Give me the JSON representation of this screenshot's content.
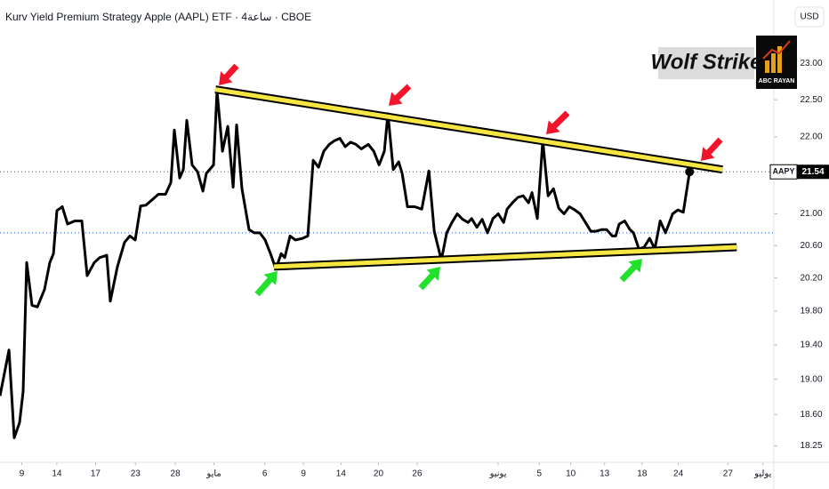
{
  "header": {
    "title": "Kurv Yield Premium Strategy Apple (AAPL) ETF · 4ساعة · CBOE",
    "currency": "USD"
  },
  "logo": {
    "title": "Wolf Strike",
    "brand": "ABC RAYAN"
  },
  "chart_data": {
    "type": "line",
    "color": "#000000",
    "log_scale": true,
    "symbol": "AAPY",
    "x": [
      0,
      0.74,
      1.18,
      1.62,
      1.91,
      2.21,
      2.65,
      3.09,
      3.68,
      4.12,
      4.42,
      4.71,
      5.15,
      5.59,
      6.18,
      6.77,
      7.21,
      7.8,
      8.24,
      8.83,
      9.12,
      9.71,
      10.3,
      10.74,
      11.18,
      11.63,
      12.07,
      12.51,
      13.1,
      13.69,
      14.13,
      14.42,
      14.86,
      15.16,
      15.45,
      15.89,
      16.34,
      16.78,
      17.07,
      17.66,
      17.95,
      18.4,
      18.84,
      19.28,
      19.57,
      20.01,
      20.6,
      21.04,
      21.49,
      21.93,
      22.37,
      22.81,
      23.25,
      23.55,
      23.99,
      24.43,
      25.02,
      25.46,
      25.9,
      26.34,
      26.78,
      27.23,
      27.67,
      28.11,
      28.55,
      28.99,
      29.43,
      29.88,
      30.46,
      30.91,
      31.35,
      31.79,
      32.08,
      32.52,
      32.97,
      33.26,
      33.7,
      34.29,
      34.88,
      35.47,
      35.91,
      36.5,
      36.94,
      37.38,
      37.82,
      38.26,
      38.71,
      39.0,
      39.44,
      39.88,
      40.32,
      40.77,
      41.21,
      41.65,
      41.94,
      42.38,
      42.83,
      43.27,
      43.71,
      44.0,
      44.44,
      44.89,
      45.33,
      45.77,
      46.21,
      46.65,
      47.09,
      47.54,
      47.98,
      48.42,
      48.86,
      49.3,
      49.74,
      50.18,
      50.63,
      50.92,
      51.21,
      51.66,
      52.1,
      52.39,
      52.83,
      53.27,
      53.72,
      54.16,
      54.6,
      55.04,
      55.63,
      56.07,
      56.51,
      57.03
    ],
    "values": [
      18.81,
      19.34,
      18.34,
      18.51,
      18.86,
      20.39,
      19.87,
      19.85,
      20.06,
      20.39,
      20.5,
      21.04,
      21.09,
      20.87,
      20.91,
      20.91,
      20.23,
      20.39,
      20.45,
      20.48,
      19.92,
      20.34,
      20.64,
      20.72,
      20.67,
      21.1,
      21.11,
      21.17,
      21.25,
      21.25,
      21.4,
      22.09,
      21.46,
      21.57,
      22.22,
      21.63,
      21.54,
      21.29,
      21.52,
      21.63,
      22.62,
      21.81,
      22.14,
      21.34,
      22.16,
      21.32,
      20.8,
      20.76,
      20.76,
      20.67,
      20.5,
      20.31,
      20.5,
      20.45,
      20.72,
      20.67,
      20.69,
      20.72,
      21.69,
      21.6,
      21.81,
      21.9,
      21.95,
      21.98,
      21.87,
      21.93,
      21.9,
      21.84,
      21.9,
      21.81,
      21.63,
      21.81,
      22.31,
      21.57,
      21.67,
      21.52,
      21.09,
      21.09,
      21.06,
      21.55,
      20.78,
      20.42,
      20.76,
      20.89,
      21.0,
      20.93,
      20.89,
      20.94,
      20.83,
      20.93,
      20.76,
      20.94,
      21.0,
      20.89,
      21.06,
      21.14,
      21.21,
      21.23,
      21.14,
      21.27,
      20.94,
      21.95,
      21.23,
      21.32,
      21.07,
      21.0,
      21.09,
      21.05,
      21.0,
      20.89,
      20.78,
      20.78,
      20.8,
      20.8,
      20.72,
      20.72,
      20.87,
      20.91,
      20.8,
      20.76,
      20.56,
      20.58,
      20.69,
      20.56,
      20.91,
      20.76,
      21.0,
      21.05,
      21.02,
      21.54
    ],
    "xlim": [
      0,
      64
    ],
    "xticks": [
      {
        "value": 1.8,
        "label": "9"
      },
      {
        "value": 4.7,
        "label": "14"
      },
      {
        "value": 7.9,
        "label": "17"
      },
      {
        "value": 11.2,
        "label": "23"
      },
      {
        "value": 14.5,
        "label": "28"
      },
      {
        "value": 17.7,
        "label": "مايو"
      },
      {
        "value": 21.9,
        "label": "6"
      },
      {
        "value": 25.1,
        "label": "9"
      },
      {
        "value": 28.2,
        "label": "14"
      },
      {
        "value": 31.3,
        "label": "20"
      },
      {
        "value": 34.5,
        "label": "26"
      },
      {
        "value": 41.2,
        "label": "يونيو"
      },
      {
        "value": 44.6,
        "label": "5"
      },
      {
        "value": 47.2,
        "label": "10"
      },
      {
        "value": 50.0,
        "label": "13"
      },
      {
        "value": 53.1,
        "label": "18"
      },
      {
        "value": 56.1,
        "label": "24"
      },
      {
        "value": 60.2,
        "label": "27"
      },
      {
        "value": 63.1,
        "label": "يوليو"
      }
    ],
    "ylim": [
      18.07,
      23.77
    ],
    "yticks": [
      {
        "value": 23,
        "label": "23.00"
      },
      {
        "value": 22.5,
        "label": "22.50"
      },
      {
        "value": 22,
        "label": "22.00"
      },
      {
        "value": 21,
        "label": "21.00"
      },
      {
        "value": 20.6,
        "label": "20.60"
      },
      {
        "value": 20.2,
        "label": "20.20"
      },
      {
        "value": 19.8,
        "label": "19.80"
      },
      {
        "value": 19.4,
        "label": "19.40"
      },
      {
        "value": 19,
        "label": "19.00"
      },
      {
        "value": 18.6,
        "label": "18.60"
      },
      {
        "value": 18.25,
        "label": "18.25"
      }
    ],
    "reference_lines": [
      20.76
    ],
    "trendlines": [
      {
        "x": [
          17.81,
          59.75
        ],
        "y": [
          22.64,
          21.57
        ]
      },
      {
        "x": [
          22.66,
          60.93
        ],
        "y": [
          20.34,
          20.58
        ]
      }
    ]
  }
}
